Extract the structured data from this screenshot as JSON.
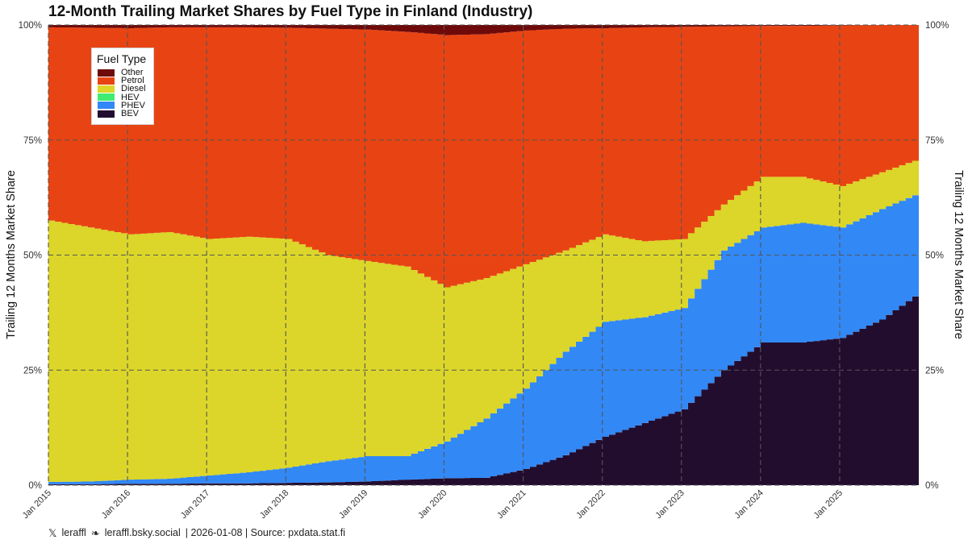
{
  "chart_data": {
    "type": "area",
    "title": "12-Month Trailing Market Shares by Fuel Type in Finland (Industry)",
    "ylabel_left": "Trailing 12 Months Market Share",
    "ylabel_right": "Trailing 12 Months Market Share",
    "ylim": [
      0,
      100
    ],
    "y_ticks": [
      "0%",
      "25%",
      "50%",
      "75%",
      "100%"
    ],
    "x_ticks": [
      "Jan 2015",
      "Jan 2016",
      "Jan 2017",
      "Jan 2018",
      "Jan 2019",
      "Jan 2020",
      "Jan 2021",
      "Jan 2022",
      "Jan 2023",
      "Jan 2024",
      "Jan 2025"
    ],
    "x_start": "2015-01",
    "x_end": "2025-12",
    "grid": true,
    "legend": {
      "title": "Fuel Type",
      "position": "top-left"
    },
    "series_order_bottom_to_top": [
      "BEV",
      "PHEV",
      "HEV",
      "Diesel",
      "Petrol",
      "Other"
    ],
    "legend_order": [
      "Other",
      "Petrol",
      "Diesel",
      "HEV",
      "PHEV",
      "BEV"
    ],
    "colors": {
      "BEV": "#230d2f",
      "PHEV": "#3288f5",
      "HEV": "#40ec72",
      "Diesel": "#dbd629",
      "Petrol": "#e84413",
      "Other": "#6e0a0a"
    },
    "series_cumulative": {
      "x": [
        "2015-01",
        "2015-07",
        "2016-01",
        "2016-07",
        "2017-01",
        "2017-07",
        "2018-01",
        "2018-07",
        "2019-01",
        "2019-07",
        "2020-01",
        "2020-07",
        "2021-01",
        "2021-07",
        "2022-01",
        "2022-07",
        "2023-01",
        "2023-07",
        "2024-01",
        "2024-07",
        "2025-01",
        "2025-07",
        "2025-12"
      ],
      "BEV": [
        0.2,
        0.2,
        0.3,
        0.3,
        0.4,
        0.4,
        0.5,
        0.6,
        0.8,
        1.2,
        1.5,
        1.6,
        3.5,
        6.5,
        10.5,
        13.5,
        16.5,
        25,
        31,
        31,
        32,
        36,
        41
      ],
      "PHEV": [
        0.7,
        0.8,
        1.2,
        1.4,
        2.1,
        2.8,
        3.8,
        5.2,
        6.3,
        6.3,
        9.5,
        14.5,
        21,
        29,
        35.5,
        36.5,
        38.5,
        51,
        56,
        57,
        56,
        60,
        63
      ],
      "HEV": [
        0.7,
        0.8,
        1.2,
        1.4,
        2.1,
        2.8,
        3.8,
        5.2,
        6.3,
        6.3,
        9.5,
        14.5,
        21,
        29,
        35.5,
        36.5,
        38.5,
        51,
        56,
        57,
        56,
        60,
        63
      ],
      "Diesel": [
        57.5,
        56,
        54.5,
        55,
        53.5,
        54,
        53.5,
        50,
        48.7,
        47.5,
        43,
        45,
        48,
        51,
        54.5,
        53,
        53.5,
        61,
        67,
        67,
        65,
        68,
        70.5
      ],
      "Petrol": [
        99.5,
        99.4,
        99.3,
        99.5,
        99.5,
        99.5,
        99.4,
        99.2,
        99,
        98.5,
        97.8,
        98,
        98.8,
        99.2,
        99.3,
        99.5,
        99.6,
        99.7,
        99.8,
        99.8,
        99.9,
        100,
        100
      ],
      "Other": [
        100,
        100,
        100,
        100,
        100,
        100,
        100,
        100,
        100,
        100,
        100,
        100,
        100,
        100,
        100,
        100,
        100,
        100,
        100,
        100,
        100,
        100,
        100
      ]
    }
  },
  "footer": {
    "handle": "leraffl",
    "bsky": "leraffl.bsky.social",
    "info": "| 2026-01-08 | Source: pxdata.stat.fi"
  }
}
